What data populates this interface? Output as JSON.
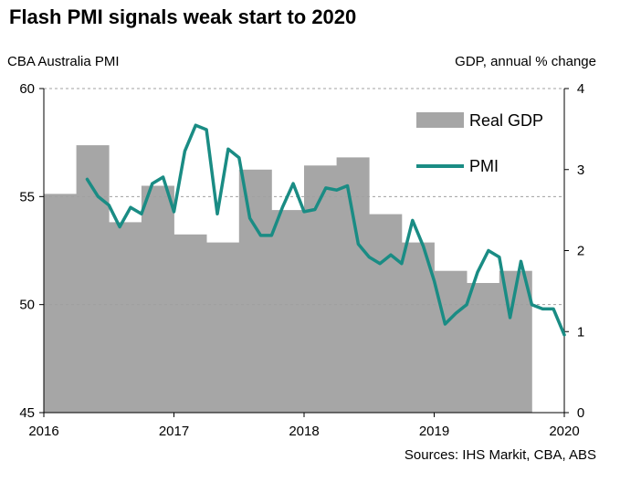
{
  "chart_data": {
    "type": "bar+line",
    "title": "Flash PMI signals weak start to 2020",
    "ylabel_left": "CBA Australia PMI",
    "ylabel_right": "GDP, annual % change",
    "source": "Sources: IHS Markit, CBA, ABS",
    "x_ticks": [
      "2016",
      "2017",
      "2018",
      "2019",
      "2020"
    ],
    "y_left": {
      "min": 45,
      "max": 60,
      "ticks": [
        "45",
        "50",
        "55",
        "60"
      ]
    },
    "y_right": {
      "min": 0,
      "max": 4,
      "ticks": [
        "0",
        "1",
        "2",
        "3",
        "4"
      ]
    },
    "grid": "horizontal dashed",
    "legend_position": "top-right",
    "series": [
      {
        "name": "Real GDP",
        "kind": "bar",
        "axis": "right",
        "color": "#a6a6a6",
        "x": [
          "2016-Q1",
          "2016-Q2",
          "2016-Q3",
          "2016-Q4",
          "2017-Q1",
          "2017-Q2",
          "2017-Q3",
          "2017-Q4",
          "2018-Q1",
          "2018-Q2",
          "2018-Q3",
          "2018-Q4",
          "2019-Q1",
          "2019-Q2",
          "2019-Q3"
        ],
        "values": [
          2.7,
          3.3,
          2.35,
          2.8,
          2.2,
          2.1,
          3.0,
          2.5,
          3.05,
          3.15,
          2.45,
          2.1,
          1.75,
          1.6,
          1.75
        ]
      },
      {
        "name": "PMI",
        "kind": "line",
        "axis": "left",
        "color": "#1a8c84",
        "x": [
          "2016-05",
          "2016-06",
          "2016-07",
          "2016-08",
          "2016-09",
          "2016-10",
          "2016-11",
          "2016-12",
          "2017-01",
          "2017-02",
          "2017-03",
          "2017-04",
          "2017-05",
          "2017-06",
          "2017-07",
          "2017-08",
          "2017-09",
          "2017-10",
          "2017-11",
          "2017-12",
          "2018-01",
          "2018-02",
          "2018-03",
          "2018-04",
          "2018-05",
          "2018-06",
          "2018-07",
          "2018-08",
          "2018-09",
          "2018-10",
          "2018-11",
          "2018-12",
          "2019-01",
          "2019-02",
          "2019-03",
          "2019-04",
          "2019-05",
          "2019-06",
          "2019-07",
          "2019-08",
          "2019-09",
          "2019-10",
          "2019-11",
          "2019-12",
          "2020-01"
        ],
        "values": [
          55.8,
          55.0,
          54.6,
          53.6,
          54.5,
          54.2,
          55.6,
          55.9,
          54.3,
          57.1,
          58.3,
          58.1,
          54.2,
          57.2,
          56.8,
          54.0,
          53.2,
          53.2,
          54.5,
          55.6,
          54.3,
          54.4,
          55.4,
          55.3,
          55.5,
          52.8,
          52.2,
          51.9,
          52.3,
          51.9,
          53.9,
          52.7,
          51.1,
          49.1,
          49.6,
          50.0,
          51.5,
          52.5,
          52.2,
          49.4,
          52.0,
          50.0,
          49.8,
          49.8,
          48.6
        ]
      }
    ]
  }
}
